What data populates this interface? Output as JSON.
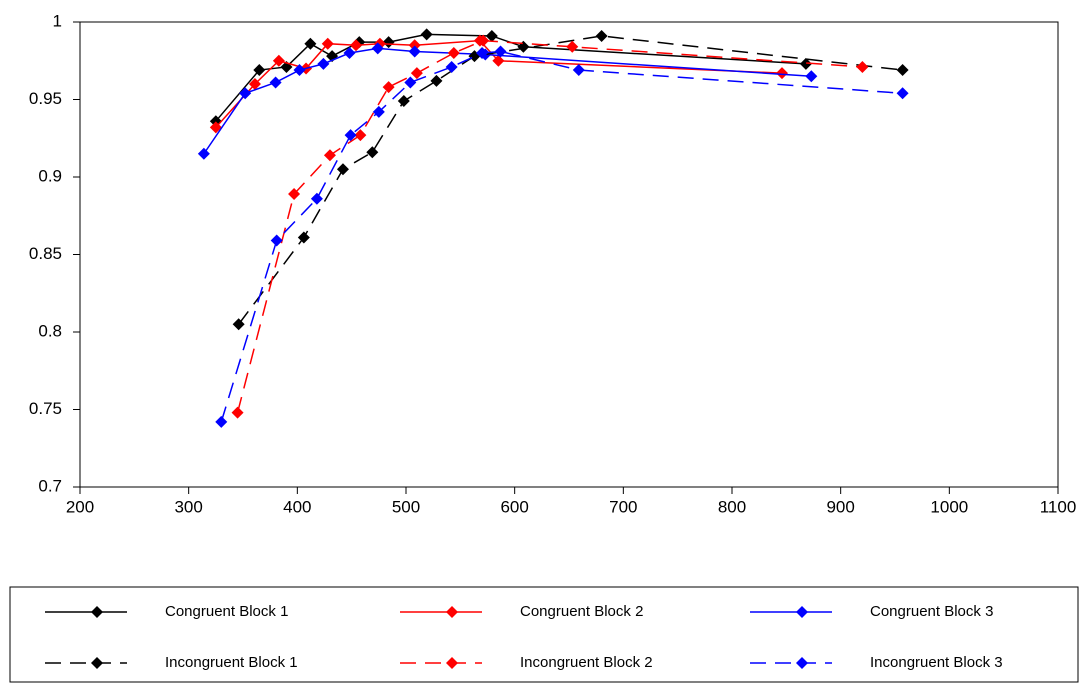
{
  "chart_data": {
    "type": "line",
    "xlim": [
      200,
      1100
    ],
    "xticks": [
      200,
      300,
      400,
      500,
      600,
      700,
      800,
      900,
      1000,
      1100
    ],
    "ylim": [
      0.7,
      1
    ],
    "yticks": [
      0.7,
      0.75,
      0.8,
      0.85,
      0.9,
      0.95,
      1
    ],
    "series": [
      {
        "name": "Congruent Block 1",
        "color": "#000000",
        "line_style": "solid",
        "x": [
          325,
          365,
          390,
          412,
          432,
          457,
          484,
          519,
          579,
          608,
          868
        ],
        "values": [
          0.936,
          0.969,
          0.971,
          0.986,
          0.978,
          0.987,
          0.987,
          0.992,
          0.991,
          0.984,
          0.973
        ]
      },
      {
        "name": "Congruent Block 2",
        "color": "#ff0000",
        "line_style": "solid",
        "x": [
          325,
          361,
          383,
          408,
          428,
          454,
          476,
          508,
          568,
          585,
          846
        ],
        "values": [
          0.932,
          0.96,
          0.975,
          0.97,
          0.986,
          0.985,
          0.986,
          0.985,
          0.988,
          0.975,
          0.967
        ]
      },
      {
        "name": "Congruent Block 3",
        "color": "#0000ff",
        "line_style": "solid",
        "x": [
          314,
          352,
          380,
          402,
          424,
          448,
          474,
          508,
          573,
          873
        ],
        "values": [
          0.915,
          0.954,
          0.961,
          0.969,
          0.973,
          0.98,
          0.983,
          0.981,
          0.979,
          0.965
        ]
      },
      {
        "name": "Incongruent Block 1",
        "color": "#000000",
        "line_style": "dashed",
        "x": [
          346,
          406,
          442,
          469,
          498,
          528,
          563,
          680,
          957
        ],
        "values": [
          0.805,
          0.861,
          0.905,
          0.916,
          0.949,
          0.962,
          0.978,
          0.991,
          0.969
        ]
      },
      {
        "name": "Incongruent Block 2",
        "color": "#ff0000",
        "line_style": "dashed",
        "x": [
          345,
          397,
          430,
          458,
          484,
          510,
          544,
          571,
          653,
          920
        ],
        "values": [
          0.748,
          0.889,
          0.914,
          0.927,
          0.958,
          0.967,
          0.98,
          0.988,
          0.984,
          0.971
        ]
      },
      {
        "name": "Incongruent Block 3",
        "color": "#0000ff",
        "line_style": "dashed",
        "x": [
          330,
          381,
          418,
          449,
          475,
          504,
          542,
          570,
          587,
          659,
          957
        ],
        "values": [
          0.742,
          0.859,
          0.886,
          0.927,
          0.942,
          0.961,
          0.971,
          0.98,
          0.981,
          0.969,
          0.954
        ]
      }
    ]
  }
}
